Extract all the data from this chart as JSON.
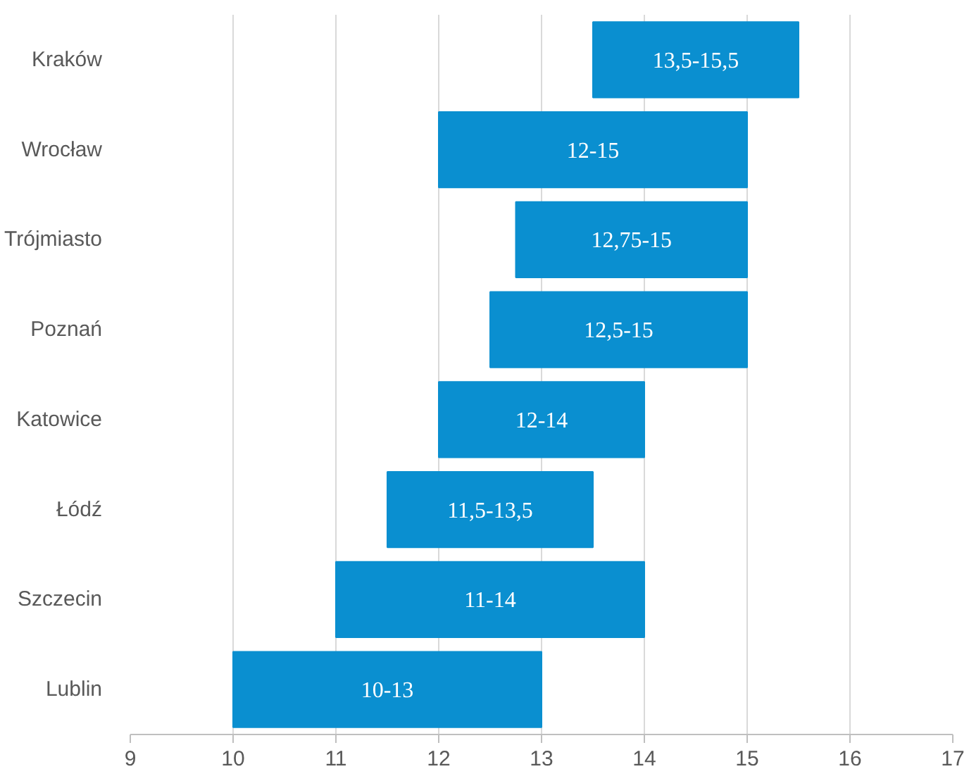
{
  "chart_data": {
    "type": "bar",
    "orientation": "horizontal",
    "categories": [
      "Kraków",
      "Wrocław",
      "Trójmiasto",
      "Poznań",
      "Katowice",
      "Łódź",
      "Szczecin",
      "Lublin"
    ],
    "base": [
      13.5,
      12,
      12.75,
      12.5,
      12,
      11.5,
      11,
      10
    ],
    "values": [
      2,
      3,
      2.25,
      2.5,
      2,
      2,
      3,
      3
    ],
    "value_labels": [
      "13,5-15,5",
      "12-15",
      "12,75-15",
      "12,5-15",
      "12-14",
      "11,5-13,5",
      "11-14",
      "10-13"
    ],
    "color": "#0a8fd0",
    "xlim": [
      9,
      17
    ],
    "xticks": [
      9,
      10,
      11,
      12,
      13,
      14,
      15,
      16,
      17
    ],
    "grid": "x"
  }
}
